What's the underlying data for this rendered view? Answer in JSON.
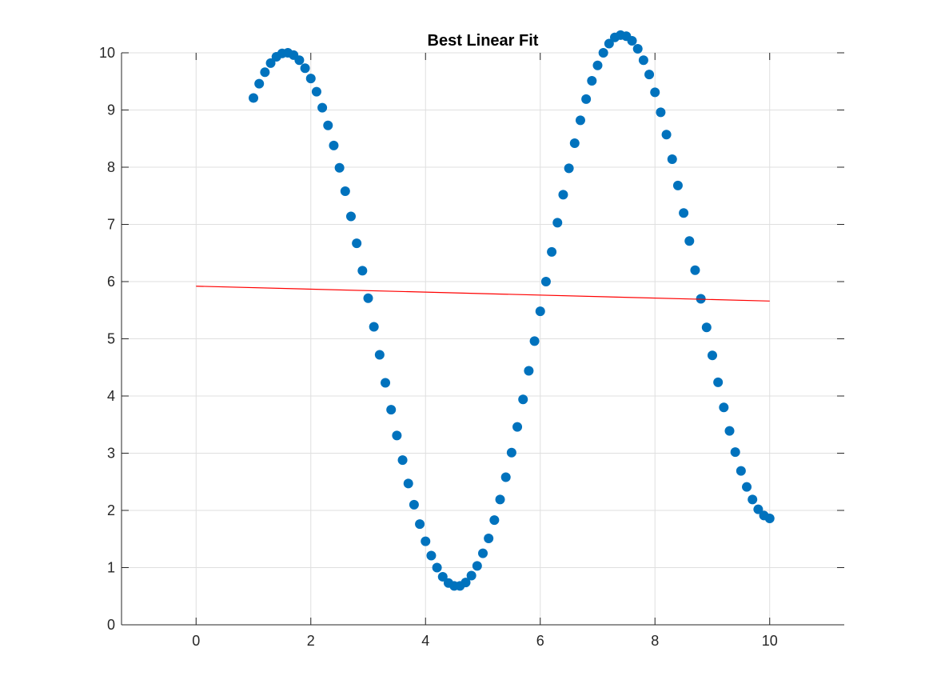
{
  "chart_data": {
    "type": "scatter",
    "title": "Best Linear Fit",
    "xlabel": "",
    "ylabel": "",
    "xlim": [
      -1.3,
      11.3
    ],
    "ylim": [
      0,
      10
    ],
    "xticks": [
      0,
      2,
      4,
      6,
      8,
      10
    ],
    "yticks": [
      0,
      1,
      2,
      3,
      4,
      5,
      6,
      7,
      8,
      9,
      10
    ],
    "grid": true,
    "series": [
      {
        "kind": "scatter",
        "color": "#0072BD",
        "x": [
          1.0,
          1.1,
          1.2,
          1.3,
          1.4,
          1.5,
          1.6,
          1.7,
          1.8,
          1.9,
          2.0,
          2.1,
          2.2,
          2.3,
          2.4,
          2.5,
          2.6,
          2.7,
          2.8,
          2.9,
          3.0,
          3.1,
          3.2,
          3.3,
          3.4,
          3.5,
          3.6,
          3.7,
          3.8,
          3.9,
          4.0,
          4.1,
          4.2,
          4.3,
          4.4,
          4.5,
          4.6,
          4.7,
          4.8,
          4.9,
          5.0,
          5.1,
          5.2,
          5.3,
          5.4,
          5.5,
          5.6,
          5.7,
          5.8,
          5.9,
          6.0,
          6.1,
          6.2,
          6.3,
          6.4,
          6.5,
          6.6,
          6.7,
          6.8,
          6.9,
          7.0,
          7.1,
          7.2,
          7.3,
          7.4,
          7.5,
          7.6,
          7.7,
          7.8,
          7.9,
          8.0,
          8.1,
          8.2,
          8.3,
          8.4,
          8.5,
          8.6,
          8.7,
          8.8,
          8.9,
          9.0,
          9.1,
          9.2,
          9.3,
          9.4,
          9.5,
          9.6,
          9.7,
          9.8,
          9.9,
          10.0
        ],
        "y": [
          9.21,
          9.46,
          9.66,
          9.82,
          9.93,
          9.99,
          10.0,
          9.96,
          9.87,
          9.73,
          9.55,
          9.32,
          9.04,
          8.73,
          8.38,
          7.99,
          7.58,
          7.14,
          6.67,
          6.19,
          5.71,
          5.21,
          4.72,
          4.23,
          3.76,
          3.31,
          2.88,
          2.47,
          2.1,
          1.76,
          1.46,
          1.21,
          1.0,
          0.84,
          0.73,
          0.68,
          0.68,
          0.74,
          0.86,
          1.03,
          1.25,
          1.51,
          1.83,
          2.19,
          2.58,
          3.01,
          3.46,
          3.94,
          4.44,
          4.96,
          5.48,
          6.0,
          6.52,
          7.03,
          7.52,
          7.98,
          8.42,
          8.82,
          9.19,
          9.51,
          9.78,
          10.0,
          10.16,
          10.27,
          10.31,
          10.29,
          10.21,
          10.07,
          9.87,
          9.62,
          9.31,
          8.96,
          8.57,
          8.14,
          7.68,
          7.2,
          6.71,
          6.2,
          5.7,
          5.2,
          4.71,
          4.24,
          3.8,
          3.39,
          3.02,
          2.69,
          2.41,
          2.19,
          2.02,
          1.91,
          1.86
        ]
      },
      {
        "kind": "line",
        "color": "#FF0000",
        "x": [
          0,
          10
        ],
        "y": [
          5.92,
          5.66
        ]
      }
    ]
  }
}
